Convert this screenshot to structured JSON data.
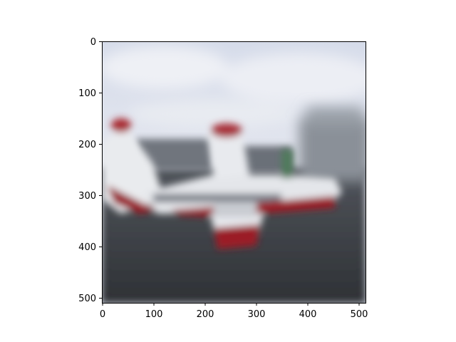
{
  "figure": {
    "x_ticks": [
      "0",
      "100",
      "200",
      "300",
      "400",
      "500"
    ],
    "y_ticks": [
      "0",
      "100",
      "200",
      "300",
      "400",
      "500"
    ]
  },
  "image": {
    "description_icon": "blurred-airplane-photo",
    "colors": {
      "sky_top": "#dfe3ee",
      "sky_bottom": "#c9ced8",
      "tarmac": "#3f4247",
      "tarmac_dark": "#2f3236",
      "hangar": "#8d949c",
      "fuselage": "#e6e8ec",
      "stripe": "#9b1e28",
      "window_band": "#6a6f78"
    }
  }
}
